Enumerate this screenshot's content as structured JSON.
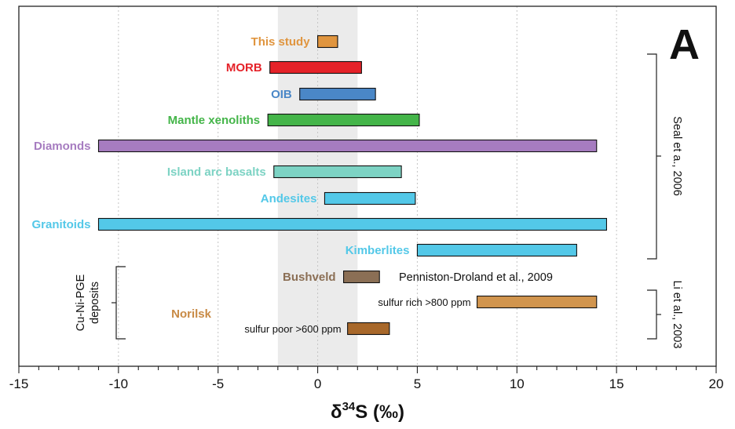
{
  "chart_data": {
    "type": "bar",
    "orientation": "horizontal",
    "panel_label": "A",
    "xlabel_prefix": "δ",
    "xlabel_sup": "34",
    "xlabel_suffix": "S (‰)",
    "xlim": [
      -15,
      20
    ],
    "xticks": [
      -15,
      -10,
      -5,
      0,
      5,
      10,
      15,
      20
    ],
    "xtick_labels": [
      "-15",
      "-10",
      "-5",
      "0",
      "5",
      "10",
      "15",
      "20"
    ],
    "grid": "vertical-dotted",
    "shaded_band": {
      "start": -2,
      "end": 2,
      "color": "#ebebeb"
    },
    "ranges": [
      {
        "label": "This study",
        "start": 0,
        "end": 1,
        "color": "#e0953f",
        "label_color": "#e0953f"
      },
      {
        "label": "MORB",
        "start": -2.4,
        "end": 2.2,
        "color": "#e52229",
        "label_color": "#e52229"
      },
      {
        "label": "OIB",
        "start": -0.9,
        "end": 2.9,
        "color": "#4a87c7",
        "label_color": "#4a87c7"
      },
      {
        "label": "Mantle xenoliths",
        "start": -2.5,
        "end": 5.1,
        "color": "#44b549",
        "label_color": "#44b549"
      },
      {
        "label": "Diamonds",
        "start": -11,
        "end": 14,
        "color": "#a67cc0",
        "label_color": "#a67cc0"
      },
      {
        "label": "Island arc basalts",
        "start": -2.2,
        "end": 4.2,
        "color": "#7dd3c4",
        "label_color": "#7dd3c4"
      },
      {
        "label": "Andesites",
        "start": 0.35,
        "end": 4.9,
        "color": "#53c8e8",
        "label_color": "#53c8e8"
      },
      {
        "label": "Granitoids",
        "start": -11,
        "end": 14.5,
        "color": "#53c8e8",
        "label_color": "#53c8e8"
      },
      {
        "label": "Kimberlites",
        "start": 5,
        "end": 13,
        "color": "#53c8e8",
        "label_color": "#53c8e8"
      },
      {
        "label": "Bushveld",
        "start": 1.3,
        "end": 3.1,
        "color": "#8b6f55",
        "label_color": "#8b6f55"
      },
      {
        "label": "sulfur rich >800 ppm",
        "start": 8,
        "end": 14,
        "color": "#d1954e",
        "label_color": "#111111"
      },
      {
        "label": "sulfur poor >600 ppm",
        "start": 1.5,
        "end": 3.6,
        "color": "#a8682a",
        "label_color": "#111111"
      }
    ],
    "annotations": {
      "norilsk": "Norilsk",
      "norilsk_color": "#c88a45",
      "cu_ni_pge_line1": "Cu-Ni-PGE",
      "cu_ni_pge_line2": "deposits",
      "bushveld_ref": "Penniston-Droland et al., 2009",
      "seal_ref": "Seal et a., 2006",
      "li_ref": "Li et al., 2003"
    }
  }
}
